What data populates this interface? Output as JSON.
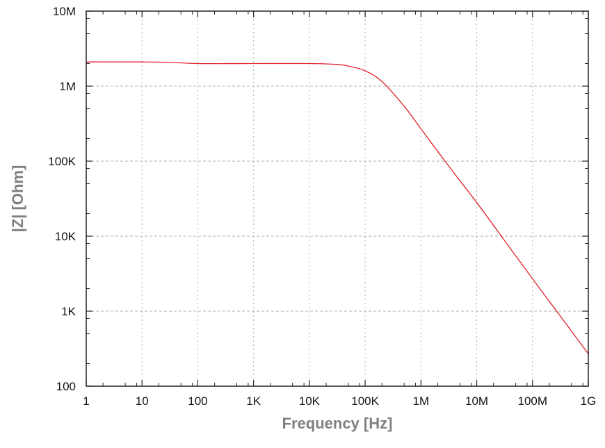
{
  "chart_data": {
    "type": "line",
    "title": "",
    "xlabel": "Frequency [Hz]",
    "ylabel": "|Z| [Ohm]",
    "xscale": "log",
    "yscale": "log",
    "xlim": [
      1,
      1000000000
    ],
    "ylim": [
      100,
      10000000
    ],
    "grid": true,
    "legend": null,
    "x_ticks": [
      {
        "value": 1,
        "label": "1"
      },
      {
        "value": 10,
        "label": "10"
      },
      {
        "value": 100,
        "label": "100"
      },
      {
        "value": 1000,
        "label": "1K"
      },
      {
        "value": 10000,
        "label": "10K"
      },
      {
        "value": 100000,
        "label": "100K"
      },
      {
        "value": 1000000,
        "label": "1M"
      },
      {
        "value": 10000000,
        "label": "10M"
      },
      {
        "value": 100000000,
        "label": "100M"
      },
      {
        "value": 1000000000,
        "label": "1G"
      }
    ],
    "y_ticks": [
      {
        "value": 100,
        "label": "100"
      },
      {
        "value": 1000,
        "label": "1K"
      },
      {
        "value": 10000,
        "label": "10K"
      },
      {
        "value": 100000,
        "label": "100K"
      },
      {
        "value": 1000000,
        "label": "1M"
      },
      {
        "value": 10000000,
        "label": "10M"
      }
    ],
    "series": [
      {
        "name": "|Z|",
        "color": "#e0202a",
        "x": [
          1,
          10,
          30,
          100,
          1000,
          10000,
          30000,
          50000,
          100000,
          200000,
          500000,
          1000000,
          3000000,
          10000000,
          30000000,
          100000000,
          300000000,
          1000000000
        ],
        "values": [
          2100000,
          2100000,
          2080000,
          2000000,
          2000000,
          2000000,
          1950000,
          1850000,
          1600000,
          1150000,
          540000,
          270000,
          90000,
          28000,
          9200,
          2700,
          900,
          270
        ]
      }
    ]
  }
}
